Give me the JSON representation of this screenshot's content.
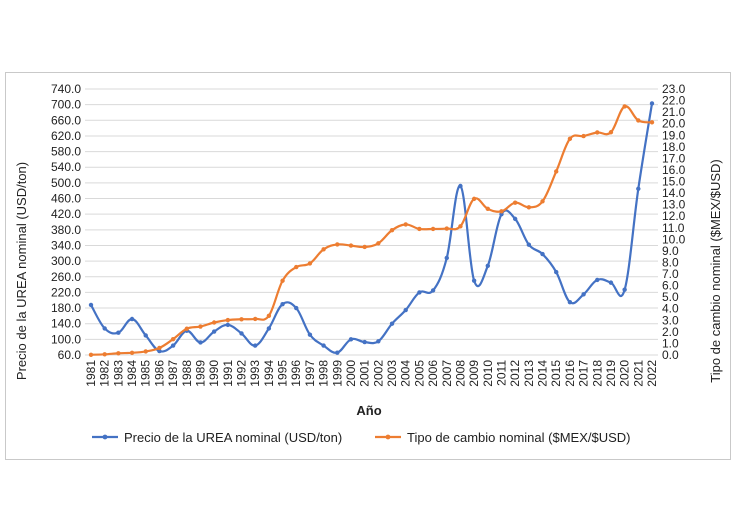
{
  "chart_data": {
    "type": "line",
    "xlabel": "Año",
    "ylabel_left": "Precio de la UREA nominal (USD/ton)",
    "ylabel_right": "Tipo de cambio nominal ($MEX/$USD)",
    "categories": [
      "1981",
      "1982",
      "1983",
      "1984",
      "1985",
      "1986",
      "1987",
      "1988",
      "1989",
      "1990",
      "1991",
      "1992",
      "1993",
      "1994",
      "1995",
      "1996",
      "1997",
      "1998",
      "1999",
      "2000",
      "2001",
      "2002",
      "2003",
      "2004",
      "2005",
      "2006",
      "2007",
      "2008",
      "2009",
      "2010",
      "2011",
      "2012",
      "2013",
      "2014",
      "2015",
      "2016",
      "2017",
      "2018",
      "2019",
      "2020",
      "2021",
      "2022"
    ],
    "y_left_ticks": [
      "60.0",
      "100.0",
      "140.0",
      "180.0",
      "220.0",
      "260.0",
      "300.0",
      "340.0",
      "380.0",
      "420.0",
      "460.0",
      "500.0",
      "540.0",
      "580.0",
      "620.0",
      "660.0",
      "700.0",
      "740.0"
    ],
    "y_right_ticks": [
      "0.0",
      "1.0",
      "2.0",
      "3.0",
      "4.0",
      "5.0",
      "6.0",
      "7.0",
      "8.0",
      "9.0",
      "10.0",
      "11.0",
      "12.0",
      "13.0",
      "14.0",
      "15.0",
      "16.0",
      "17.0",
      "18.0",
      "19.0",
      "20.0",
      "21.0",
      "22.0",
      "23.0"
    ],
    "ylim_left": [
      60,
      740
    ],
    "ylim_right": [
      0,
      23
    ],
    "series": [
      {
        "name": "Precio de la UREA nominal (USD/ton)",
        "axis": "left",
        "color": "#4472c4",
        "values": [
          188,
          128,
          117,
          152,
          110,
          70,
          84,
          122,
          92,
          120,
          137,
          115,
          84,
          128,
          190,
          180,
          112,
          84,
          66,
          100,
          93,
          95,
          140,
          175,
          220,
          225,
          308,
          492,
          250,
          288,
          420,
          408,
          342,
          318,
          272,
          195,
          215,
          252,
          245,
          227,
          485,
          703
        ]
      },
      {
        "name": "Tipo de cambio nominal ($MEX/$USD)",
        "axis": "right",
        "color": "#ed7d31",
        "values": [
          0.02,
          0.06,
          0.15,
          0.19,
          0.31,
          0.61,
          1.37,
          2.27,
          2.46,
          2.81,
          3.02,
          3.09,
          3.12,
          3.39,
          6.42,
          7.6,
          7.92,
          9.14,
          9.56,
          9.46,
          9.34,
          9.66,
          10.79,
          11.29,
          10.9,
          10.9,
          10.93,
          11.13,
          13.5,
          12.64,
          12.42,
          13.17,
          12.77,
          13.29,
          15.87,
          18.69,
          18.93,
          19.24,
          19.26,
          21.49,
          20.28,
          20.12
        ]
      }
    ],
    "legend_position": "bottom"
  }
}
